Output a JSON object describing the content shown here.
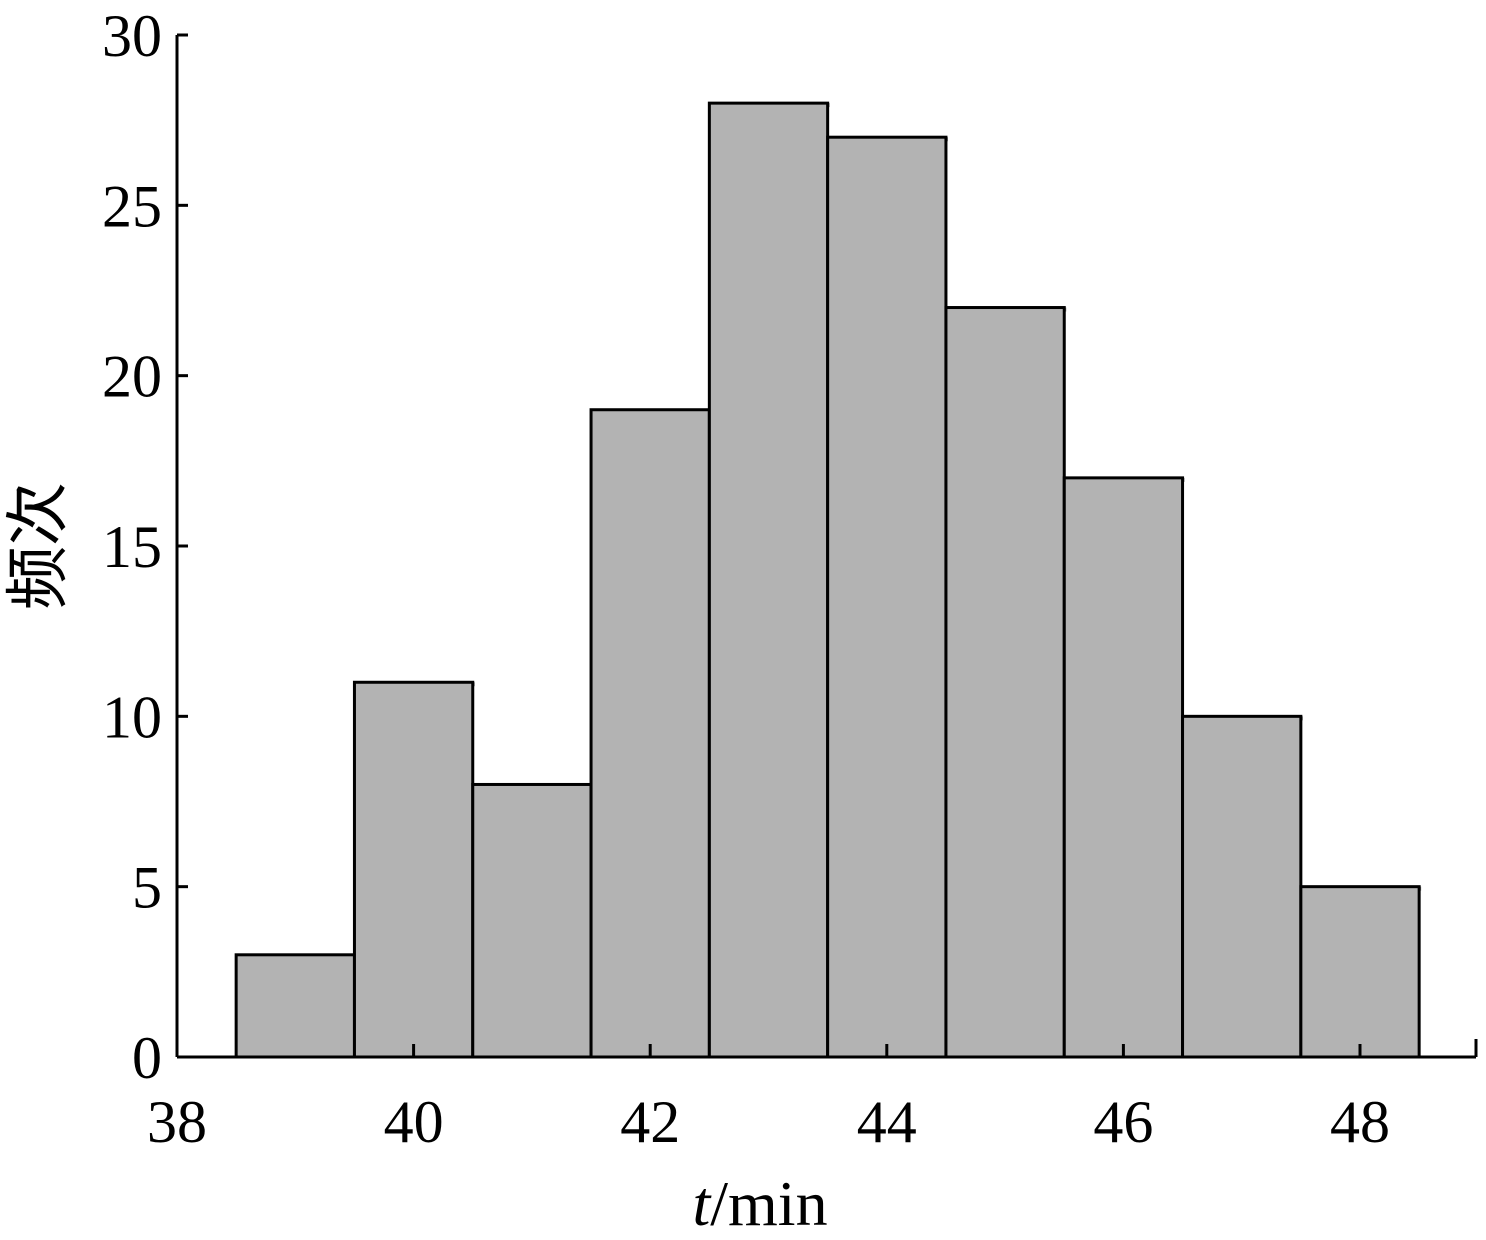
{
  "chart_data": {
    "type": "bar",
    "subtype": "histogram",
    "x": [
      39,
      40,
      41,
      42,
      43,
      44,
      45,
      46,
      47,
      48
    ],
    "values": [
      3,
      11,
      8,
      19,
      28,
      27,
      22,
      17,
      10,
      5
    ],
    "bin_width": 1,
    "xlim": [
      38,
      49
    ],
    "ylim": [
      0,
      30
    ],
    "xticks": [
      "38",
      "40",
      "42",
      "44",
      "46",
      "48"
    ],
    "yticks": [
      "0",
      "5",
      "10",
      "15",
      "20",
      "25",
      "30"
    ],
    "xlabel_italic": "t",
    "xlabel_rest": "/min",
    "ylabel": "频次",
    "bar_color": "#b3b3b3",
    "edge_color": "#000000",
    "grid": false
  }
}
